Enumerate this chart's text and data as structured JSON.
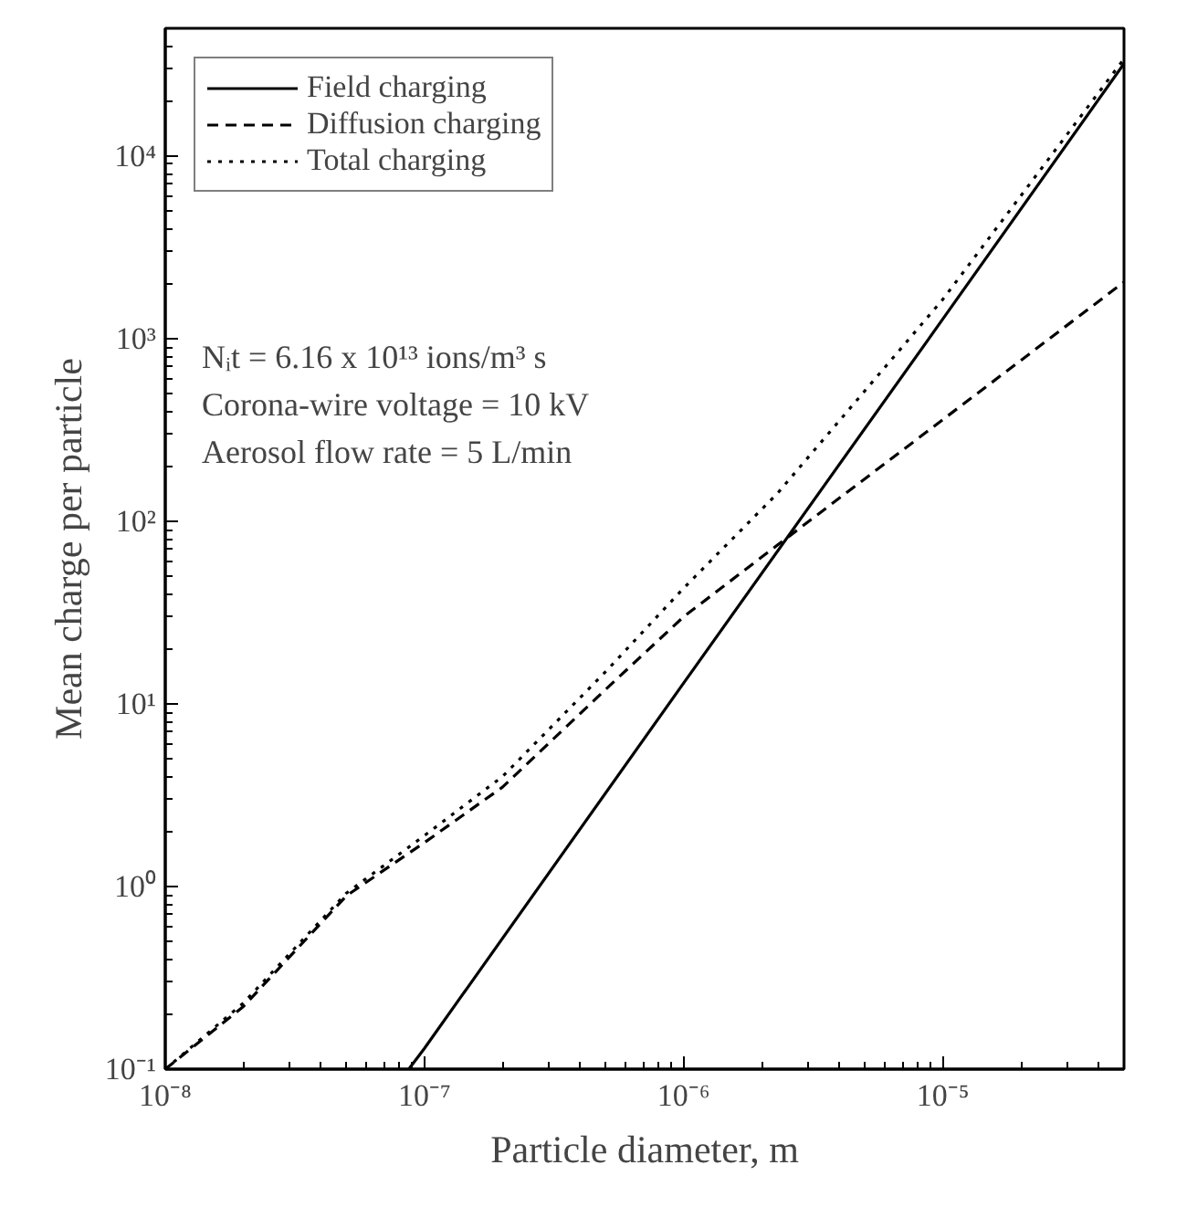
{
  "chart_data": {
    "type": "line",
    "xlabel": "Particle diameter, m",
    "ylabel": "Mean charge per particle",
    "log": "xy",
    "grid": false,
    "legend": "top left",
    "xlim": [
      1e-08,
      5e-05
    ],
    "ylim": [
      0.1,
      50000
    ],
    "xticks": [
      {
        "value": 1e-08,
        "label": "10⁻⁸"
      },
      {
        "value": 1e-07,
        "label": "10⁻⁷"
      },
      {
        "value": 1e-06,
        "label": "10⁻⁶"
      },
      {
        "value": 1e-05,
        "label": "10⁻⁵"
      }
    ],
    "yticks": [
      {
        "value": 0.1,
        "label": "10⁻¹"
      },
      {
        "value": 1,
        "label": "10⁰"
      },
      {
        "value": 10,
        "label": "10¹"
      },
      {
        "value": 100,
        "label": "10²"
      },
      {
        "value": 1000,
        "label": "10³"
      },
      {
        "value": 10000,
        "label": "10⁴"
      }
    ],
    "series": [
      {
        "name": "Field charging",
        "color": "#000000",
        "line_style": "solid",
        "x": [
          8.7e-08,
          1e-07,
          1e-06,
          1e-05,
          5e-05
        ],
        "values": [
          0.1,
          0.13,
          13,
          1280,
          32000
        ]
      },
      {
        "name": "Diffusion charging",
        "color": "#000000",
        "line_style": "dashed",
        "x": [
          1e-08,
          2e-08,
          5e-08,
          1e-07,
          2e-07,
          5e-07,
          1e-06,
          2.3e-06,
          1e-05,
          5e-05
        ],
        "values": [
          0.1,
          0.22,
          0.89,
          1.74,
          3.5,
          12,
          30,
          74,
          360,
          2040
        ]
      },
      {
        "name": "Total charging",
        "color": "#000000",
        "line_style": "dotted",
        "x": [
          1e-08,
          2e-08,
          5e-08,
          1e-07,
          2e-07,
          5e-07,
          1e-06,
          2.3e-06,
          1e-05,
          5e-05
        ],
        "values": [
          0.1,
          0.23,
          0.92,
          1.9,
          4,
          15,
          43,
          142,
          1640,
          34000
        ]
      }
    ],
    "annotations": [
      "Nᵢt = 6.16 x 10¹³ ions/m³ s",
      "Corona-wire voltage = 10 kV",
      "Aerosol flow rate = 5 L/min"
    ]
  }
}
